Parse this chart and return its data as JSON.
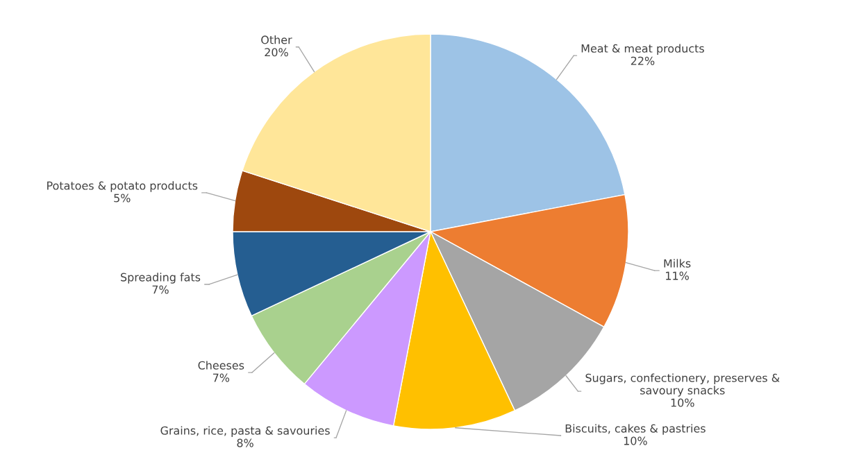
{
  "chart_data": {
    "type": "pie",
    "categories": [
      "Meat & meat products",
      "Milks",
      "Sugars, confectionery, preserves &\nsavoury snacks",
      "Biscuits, cakes & pastries",
      "Grains, rice, pasta & savouries",
      "Cheeses",
      "Spreading fats",
      "Potatoes & potato products",
      "Other"
    ],
    "values": [
      22,
      11,
      10,
      10,
      8,
      7,
      7,
      5,
      20
    ],
    "value_labels": [
      "22%",
      "11%",
      "10%",
      "10%",
      "8%",
      "7%",
      "7%",
      "5%",
      "20%"
    ],
    "colors": [
      "#9dc3e6",
      "#ed7d31",
      "#a5a5a5",
      "#ffc000",
      "#cc99ff",
      "#a9d18e",
      "#255e91",
      "#9e480e",
      "#ffe699"
    ],
    "legend": false
  }
}
